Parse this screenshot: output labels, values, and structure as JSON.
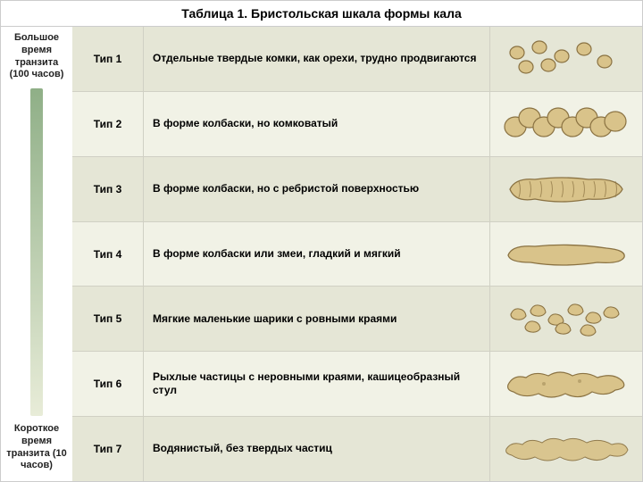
{
  "title": "Таблица 1. Бристольская шкала формы кала",
  "sidebar": {
    "top_label": "Большое время транзита (100 часов)",
    "bottom_label": "Короткое время транзита (10 часов)",
    "gradient_from": "#8faf87",
    "gradient_to": "#e8ecd8"
  },
  "table": {
    "type": "infographic-table",
    "row_colors": {
      "odd": "#e5e6d6",
      "even": "#f1f2e6"
    },
    "shape_fill": "#d9c38a",
    "shape_stroke": "#8a7242",
    "rows": [
      {
        "type_label": "Тип 1",
        "description": "Отдельные твердые комки, как орехи, трудно продвигаются",
        "shape": "type1"
      },
      {
        "type_label": "Тип 2",
        "description": "В форме колбаски, но комковатый",
        "shape": "type2"
      },
      {
        "type_label": "Тип 3",
        "description": "В форме колбаски, но с ребристой поверхностью",
        "shape": "type3"
      },
      {
        "type_label": "Тип 4",
        "description": "В форме колбаски или змеи, гладкий и мягкий",
        "shape": "type4"
      },
      {
        "type_label": "Тип 5",
        "description": "Мягкие маленькие шарики с ровными краями",
        "shape": "type5"
      },
      {
        "type_label": "Тип 6",
        "description": "Рыхлые частицы с неровными краями, кашицеобразный стул",
        "shape": "type6"
      },
      {
        "type_label": "Тип 7",
        "description": "Водянистый, без твердых частиц",
        "shape": "type7"
      }
    ]
  }
}
